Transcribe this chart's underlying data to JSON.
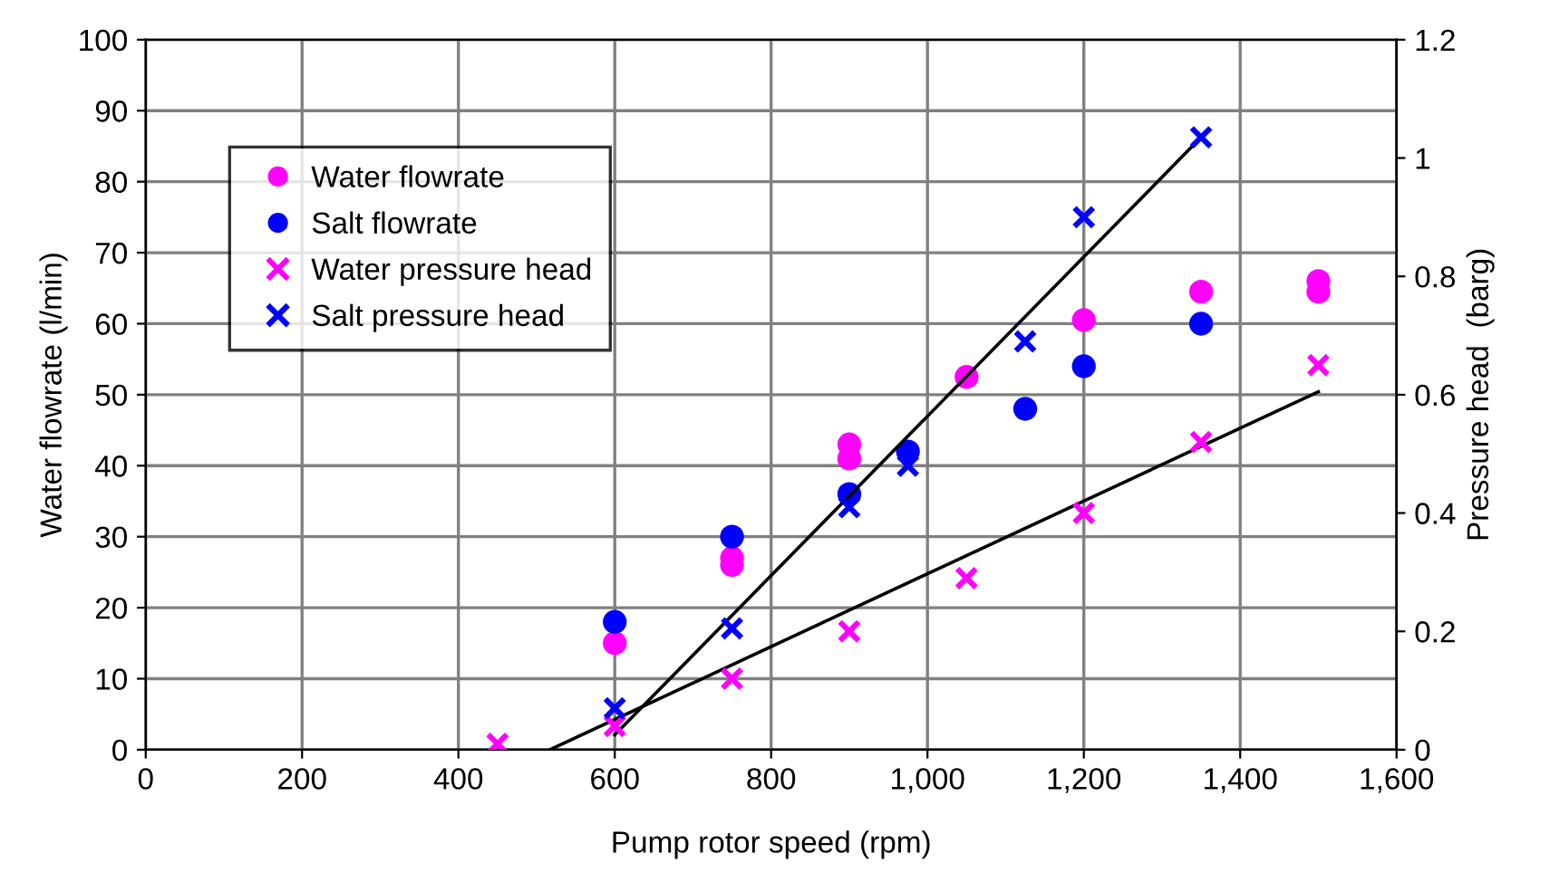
{
  "chart_data": {
    "type": "scatter",
    "xlabel": "Pump rotor speed (rpm)",
    "ylabel": "Water flowrate (l/min)",
    "y2label": "Pressure head  (barg)",
    "series": [
      {
        "name": "Water flowrate",
        "color": "#ff00ff",
        "marker": "circle",
        "x": [
          600,
          750,
          750,
          900,
          900,
          1050,
          1200,
          1350,
          1500,
          1500
        ],
        "values": [
          15,
          26,
          27,
          41,
          43,
          52.5,
          60.5,
          64.5,
          64.5,
          66
        ]
      },
      {
        "name": "Salt flowrate",
        "color": "#0000ff",
        "marker": "circle",
        "x": [
          600,
          750,
          900,
          975,
          1125,
          1200,
          1350
        ],
        "values": [
          18,
          30,
          36,
          42,
          48,
          54,
          60
        ]
      },
      {
        "name": "Water pressure head",
        "color": "#ff00ff",
        "marker": "cross",
        "axis": "y2",
        "x": [
          450,
          600,
          750,
          900,
          1050,
          1200,
          1350,
          1500
        ],
        "values": [
          0.01,
          0.04,
          0.12,
          0.2,
          0.29,
          0.4,
          0.52,
          0.65
        ]
      },
      {
        "name": "Salt pressure head",
        "color": "#0000ff",
        "marker": "cross",
        "axis": "y2",
        "x": [
          600,
          750,
          900,
          975,
          1125,
          1200,
          1350
        ],
        "values": [
          0.07,
          0.205,
          0.41,
          0.48,
          0.69,
          0.9,
          1.035
        ]
      },
      {
        "type": "line",
        "color": "#000000",
        "axis": "y2",
        "x": [
          517,
          1500
        ],
        "values": [
          0,
          0.605
        ]
      },
      {
        "type": "line",
        "color": "#000000",
        "axis": "y2",
        "x": [
          600,
          1350
        ],
        "values": [
          0.025,
          1.035
        ]
      }
    ],
    "xlim": [
      0,
      1600
    ],
    "xticks": [
      0,
      200,
      400,
      600,
      800,
      {
        "value": 1000,
        "label": "1,000"
      },
      {
        "value": 1200,
        "label": "1,200"
      },
      {
        "value": 1400,
        "label": "1,400"
      },
      {
        "value": 1600,
        "label": "1,600"
      }
    ],
    "ylim": [
      0,
      100
    ],
    "yticks": [
      0,
      10,
      20,
      30,
      40,
      50,
      60,
      70,
      80,
      90,
      100
    ],
    "y2lim": [
      0,
      1.2
    ],
    "y2ticks": [
      0,
      0.2,
      0.4,
      0.6,
      0.8,
      1,
      1.2
    ],
    "grid": true,
    "legend": "top left"
  }
}
